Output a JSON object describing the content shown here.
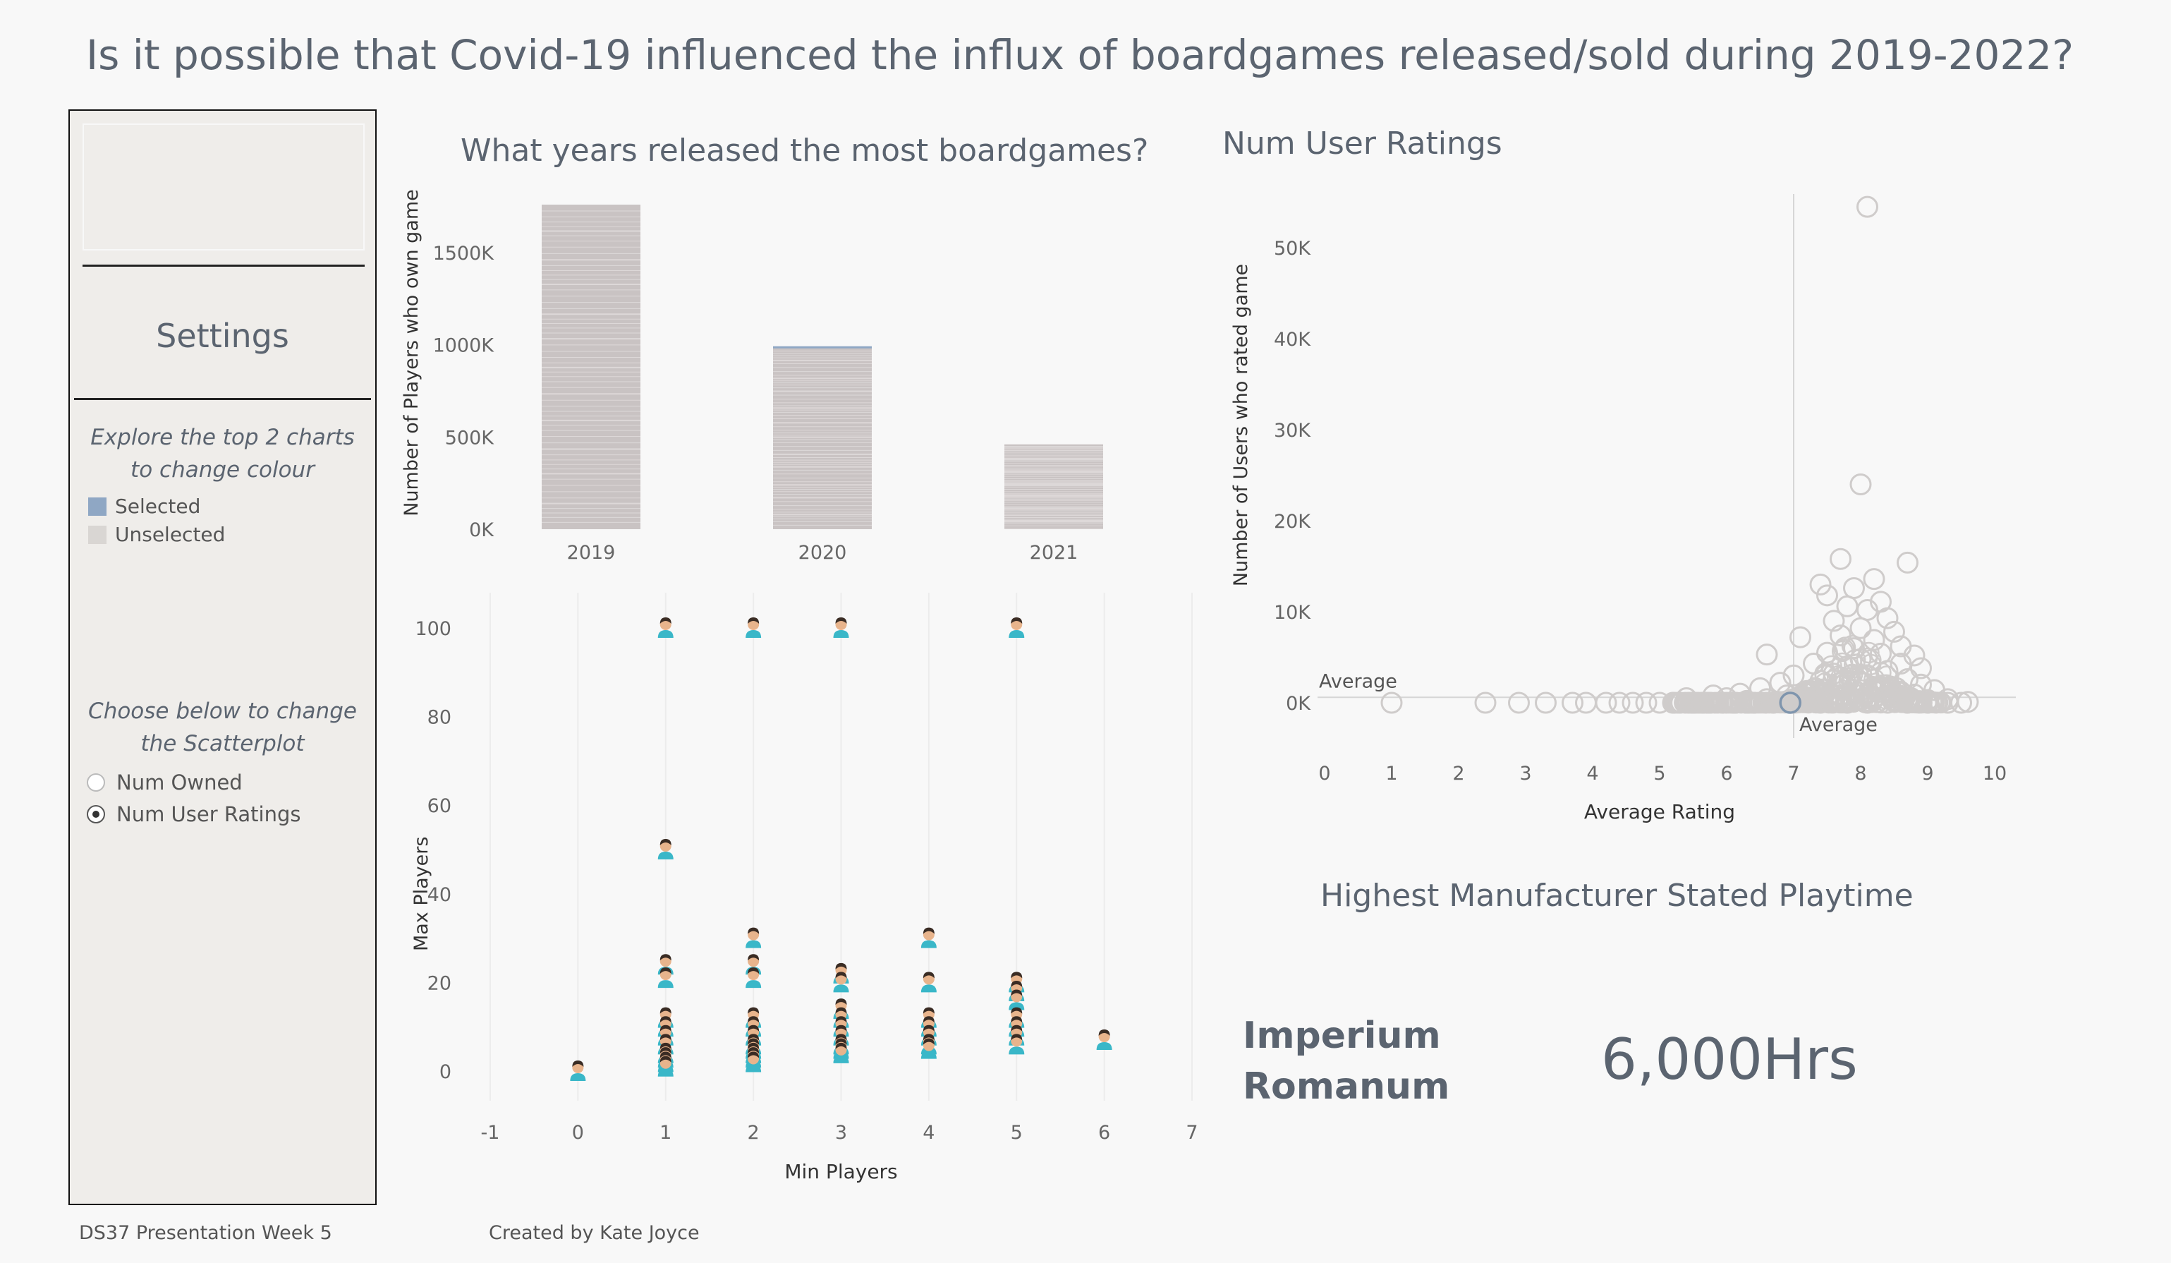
{
  "title": "Is it possible that Covid-19 influenced the influx of boardgames released/sold during 2019-2022?",
  "settings": {
    "title": "Settings",
    "note1": "Explore the top 2 charts to change colour",
    "legend": [
      {
        "label": "Selected",
        "color": "#8fa7c4"
      },
      {
        "label": "Unselected",
        "color": "#d9d6d3"
      }
    ],
    "note2": "Choose below to change the Scatterplot",
    "options": [
      {
        "label": "Num Owned",
        "selected": false
      },
      {
        "label": "Num User Ratings",
        "selected": true
      }
    ]
  },
  "highlight": {
    "title": "Highest Manufacturer Stated Playtime",
    "name_line1": "Imperium",
    "name_line2": "Romanum",
    "value": "6,000Hrs"
  },
  "footer": {
    "left": "DS37 Presentation Week 5",
    "right": "Created by Kate Joyce"
  },
  "chart_data": [
    {
      "type": "bar",
      "title": "What years released the most boardgames?",
      "ylabel": "Number of Players who own game",
      "xlabel": "",
      "categories": [
        "2019",
        "2020",
        "2021"
      ],
      "values": [
        1760,
        990,
        460
      ],
      "unit": "K",
      "ylim": [
        0,
        1760
      ],
      "yticks": [
        0,
        500,
        1000,
        1500
      ],
      "ytick_labels": [
        "0K",
        "500K",
        "1000K",
        "1500K"
      ],
      "colors": {
        "bar": "#c9c3c3",
        "selected": "#8fa7c4"
      }
    },
    {
      "type": "scatter",
      "title": "Num User Ratings",
      "xlabel": "Average Rating",
      "ylabel": "Number of Users who rated game",
      "xlim": [
        0,
        10
      ],
      "ylim": [
        0,
        55
      ],
      "xticks": [
        0,
        1,
        2,
        3,
        4,
        5,
        6,
        7,
        8,
        9,
        10
      ],
      "yticks": [
        0,
        10,
        20,
        30,
        40,
        50
      ],
      "ytick_labels": [
        "0K",
        "10K",
        "20K",
        "30K",
        "40K",
        "50K"
      ],
      "reference_lines": [
        {
          "axis": "x",
          "value": 7.0,
          "label": "Average"
        },
        {
          "axis": "y",
          "value": 0.6,
          "label": "Average"
        }
      ],
      "points": [
        [
          8.1,
          54.5
        ],
        [
          8.0,
          24.0
        ],
        [
          7.7,
          15.8
        ],
        [
          8.2,
          13.6
        ],
        [
          8.7,
          15.4
        ],
        [
          7.4,
          13.0
        ],
        [
          7.5,
          11.8
        ],
        [
          7.9,
          12.6
        ],
        [
          8.3,
          11.1
        ],
        [
          7.8,
          10.6
        ],
        [
          8.1,
          10.2
        ],
        [
          8.4,
          9.3
        ],
        [
          7.6,
          9.0
        ],
        [
          8.0,
          8.2
        ],
        [
          8.5,
          7.8
        ],
        [
          7.7,
          7.4
        ],
        [
          8.2,
          6.9
        ],
        [
          7.1,
          7.2
        ],
        [
          8.6,
          6.2
        ],
        [
          7.9,
          6.0
        ],
        [
          8.3,
          5.4
        ],
        [
          8.8,
          5.2
        ],
        [
          7.5,
          5.5
        ],
        [
          6.6,
          5.3
        ],
        [
          8.0,
          4.8
        ],
        [
          8.6,
          4.3
        ],
        [
          7.8,
          4.0
        ],
        [
          7.3,
          4.3
        ],
        [
          8.9,
          3.8
        ],
        [
          8.4,
          3.5
        ],
        [
          7.6,
          3.2
        ],
        [
          8.1,
          3.0
        ],
        [
          7.0,
          3.0
        ],
        [
          8.7,
          2.6
        ],
        [
          7.4,
          2.4
        ],
        [
          8.0,
          2.2
        ],
        [
          8.9,
          2.0
        ],
        [
          6.8,
          2.2
        ],
        [
          7.7,
          1.8
        ],
        [
          8.3,
          1.6
        ],
        [
          9.1,
          1.4
        ],
        [
          6.5,
          1.6
        ],
        [
          7.2,
          1.3
        ],
        [
          8.6,
          1.2
        ],
        [
          6.2,
          1.0
        ],
        [
          7.9,
          1.0
        ],
        [
          8.8,
          0.9
        ],
        [
          5.8,
          0.8
        ],
        [
          6.9,
          0.8
        ],
        [
          7.5,
          0.7
        ],
        [
          8.2,
          0.6
        ],
        [
          9.3,
          0.4
        ],
        [
          5.4,
          0.5
        ],
        [
          6.0,
          0.5
        ],
        [
          6.6,
          0.4
        ],
        [
          7.3,
          0.4
        ],
        [
          8.0,
          0.4
        ],
        [
          8.5,
          0.3
        ],
        [
          9.0,
          0.3
        ],
        [
          9.6,
          0.1
        ],
        [
          1.0,
          0.0
        ],
        [
          2.4,
          0.0
        ],
        [
          2.9,
          0.0
        ],
        [
          3.3,
          0.0
        ],
        [
          3.7,
          0.0
        ],
        [
          3.9,
          0.0
        ],
        [
          4.2,
          0.0
        ],
        [
          4.4,
          0.0
        ],
        [
          4.6,
          0.0
        ],
        [
          4.8,
          0.0
        ],
        [
          5.0,
          0.0
        ],
        [
          5.2,
          0.0
        ],
        [
          5.5,
          0.0
        ],
        [
          5.7,
          0.0
        ],
        [
          6.1,
          0.0
        ],
        [
          6.4,
          0.0
        ],
        [
          6.7,
          0.0
        ],
        [
          7.0,
          0.0
        ],
        [
          7.4,
          0.0
        ],
        [
          7.8,
          0.0
        ],
        [
          8.1,
          0.0
        ],
        [
          8.4,
          0.0
        ],
        [
          8.7,
          0.0
        ],
        [
          9.0,
          0.0
        ],
        [
          9.3,
          0.0
        ],
        [
          9.5,
          0.0
        ],
        [
          6.3,
          0.2
        ],
        [
          7.1,
          0.2
        ]
      ],
      "highlight_point": [
        6.95,
        0.0
      ],
      "colors": {
        "point": "#cfcccb",
        "highlight": "#7f95ad",
        "reference": "#d6d6d6"
      }
    },
    {
      "type": "scatter",
      "title": "",
      "xlabel": "Min Players",
      "ylabel": "Max Players",
      "xlim": [
        -1,
        7
      ],
      "ylim": [
        -5,
        105
      ],
      "xticks": [
        -1,
        0,
        1,
        2,
        3,
        4,
        5,
        6,
        7
      ],
      "yticks": [
        0,
        20,
        40,
        60,
        80,
        100
      ],
      "marker": "person-icon",
      "points": [
        [
          0,
          0
        ],
        [
          1,
          100
        ],
        [
          2,
          100
        ],
        [
          3,
          100
        ],
        [
          5,
          100
        ],
        [
          1,
          50
        ],
        [
          1,
          24
        ],
        [
          1,
          21
        ],
        [
          1,
          12
        ],
        [
          1,
          10
        ],
        [
          1,
          8
        ],
        [
          1,
          6
        ],
        [
          1,
          4
        ],
        [
          1,
          3
        ],
        [
          1,
          2
        ],
        [
          1,
          1
        ],
        [
          2,
          30
        ],
        [
          2,
          24
        ],
        [
          2,
          21
        ],
        [
          2,
          12
        ],
        [
          2,
          10
        ],
        [
          2,
          8
        ],
        [
          2,
          6
        ],
        [
          2,
          5
        ],
        [
          2,
          4
        ],
        [
          2,
          3
        ],
        [
          2,
          2
        ],
        [
          3,
          22
        ],
        [
          3,
          20
        ],
        [
          3,
          14
        ],
        [
          3,
          12
        ],
        [
          3,
          10
        ],
        [
          3,
          8
        ],
        [
          3,
          6
        ],
        [
          3,
          5
        ],
        [
          3,
          4
        ],
        [
          4,
          30
        ],
        [
          4,
          20
        ],
        [
          4,
          12
        ],
        [
          4,
          10
        ],
        [
          4,
          8
        ],
        [
          4,
          6
        ],
        [
          4,
          5
        ],
        [
          5,
          20
        ],
        [
          5,
          18
        ],
        [
          5,
          16
        ],
        [
          5,
          12
        ],
        [
          5,
          10
        ],
        [
          5,
          8
        ],
        [
          5,
          6
        ],
        [
          6,
          7
        ]
      ],
      "colors": {
        "body": "#3ab7c8",
        "face": "#e8b48c",
        "hair": "#3a2c24"
      }
    }
  ]
}
